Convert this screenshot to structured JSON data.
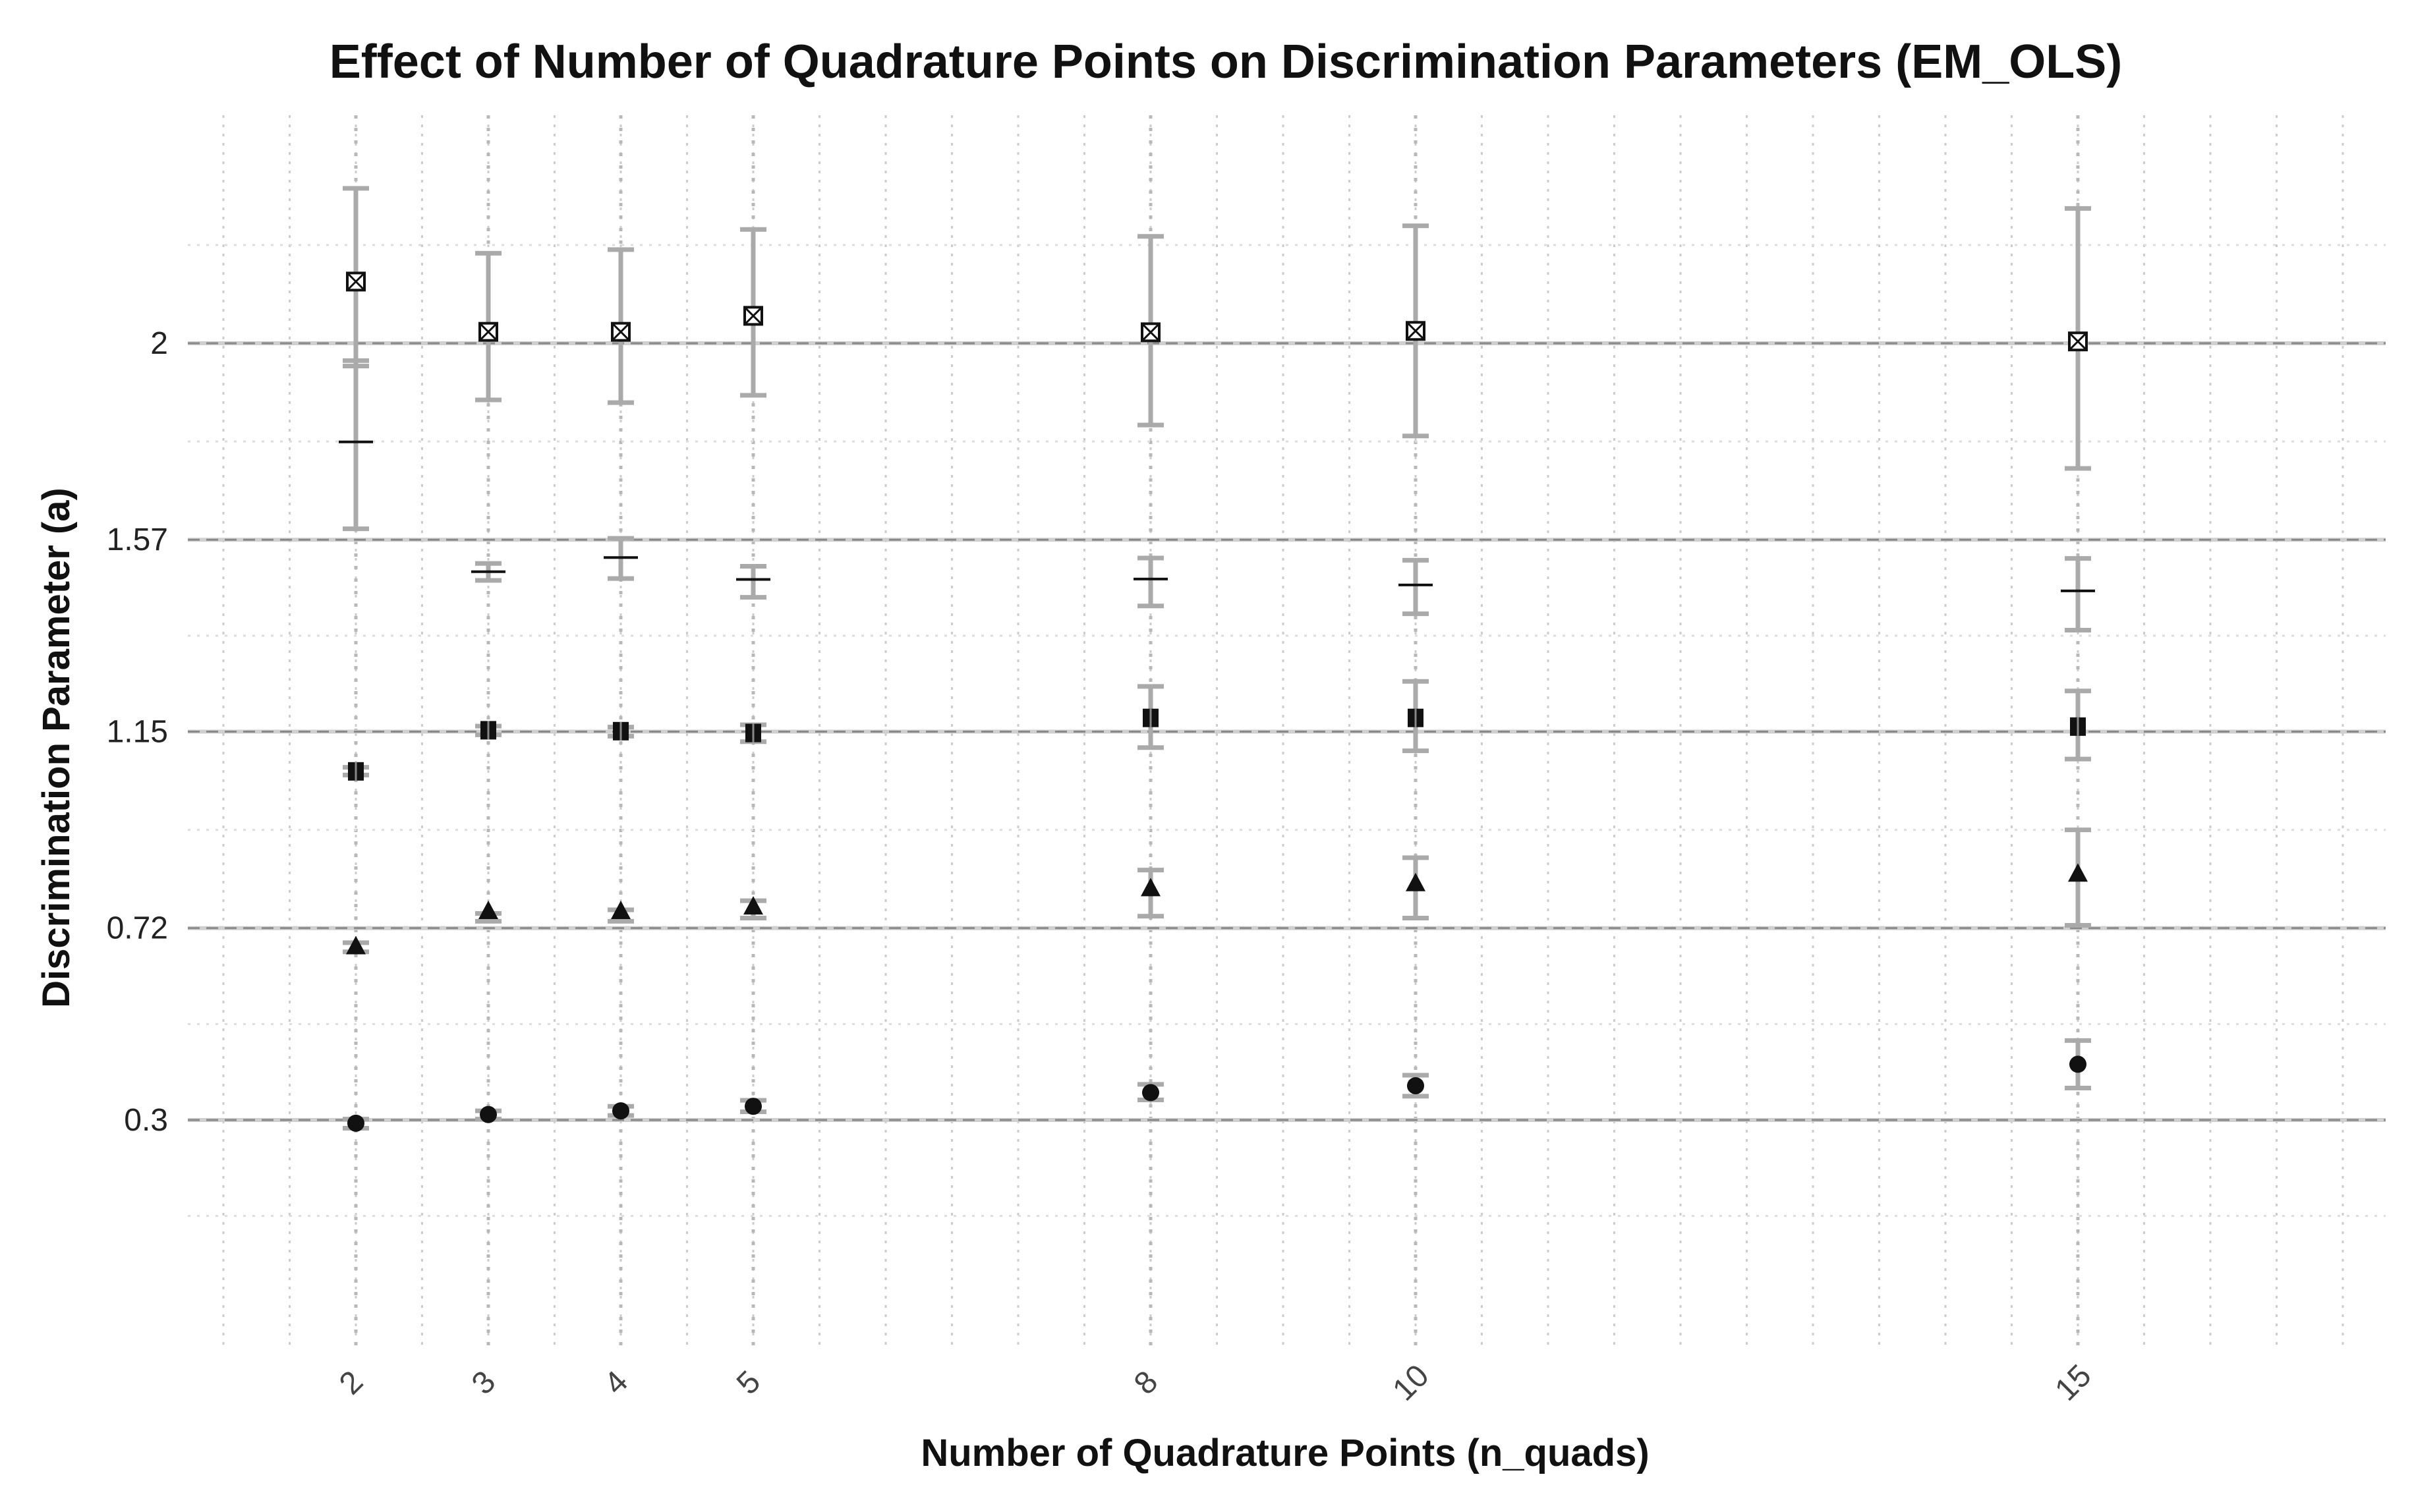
{
  "chart_data": {
    "type": "scatter",
    "title": "Effect of Number of Quadrature Points on Discrimination Parameters (EM_OLS)",
    "xlabel": "Number of Quadrature Points (n_quads)",
    "ylabel": "Discrimination Parameter (a)",
    "x": [
      2,
      3,
      4,
      5,
      8,
      10,
      15
    ],
    "xlim": [
      0,
      17
    ],
    "ylim": [
      0,
      2.5
    ],
    "yticks": [
      "0.3",
      "0.72",
      "1.15",
      "1.57",
      "2"
    ],
    "ytick_values": [
      0.3,
      0.72,
      1.15,
      1.57,
      2.0
    ],
    "reference_lines": [
      0.3,
      0.72,
      1.15,
      1.57,
      2.0
    ],
    "grid": true,
    "legend": "none",
    "colors": {
      "errorbar": "#aaaaaa",
      "marker": "#111111",
      "refline": "#888888",
      "grid": "#cccccc"
    },
    "series": [
      {
        "marker": "circle",
        "values": [
          0.293,
          0.312,
          0.32,
          0.33,
          0.36,
          0.375,
          0.422
        ],
        "lower": [
          0.282,
          0.302,
          0.31,
          0.318,
          0.344,
          0.352,
          0.37
        ],
        "upper": [
          0.302,
          0.32,
          0.33,
          0.343,
          0.378,
          0.398,
          0.474
        ]
      },
      {
        "marker": "triangle",
        "values": [
          0.68,
          0.757,
          0.757,
          0.767,
          0.807,
          0.818,
          0.839
        ],
        "lower": [
          0.668,
          0.735,
          0.735,
          0.742,
          0.746,
          0.742,
          0.726
        ],
        "upper": [
          0.688,
          0.752,
          0.76,
          0.78,
          0.847,
          0.874,
          0.935
        ]
      },
      {
        "marker": "square",
        "values": [
          1.063,
          1.153,
          1.151,
          1.147,
          1.18,
          1.18,
          1.161
        ],
        "lower": [
          1.055,
          1.143,
          1.14,
          1.128,
          1.115,
          1.108,
          1.09
        ],
        "upper": [
          1.072,
          1.162,
          1.16,
          1.165,
          1.249,
          1.26,
          1.239
        ]
      },
      {
        "marker": "dash",
        "values": [
          1.784,
          1.5,
          1.531,
          1.483,
          1.484,
          1.471,
          1.458
        ],
        "lower": [
          1.594,
          1.481,
          1.485,
          1.444,
          1.425,
          1.408,
          1.372
        ],
        "upper": [
          1.962,
          1.518,
          1.573,
          1.512,
          1.53,
          1.525,
          1.529
        ]
      },
      {
        "marker": "boxed-x",
        "values": [
          2.135,
          2.025,
          2.025,
          2.06,
          2.024,
          2.027,
          2.004
        ],
        "lower": [
          1.95,
          1.876,
          1.87,
          1.886,
          1.821,
          1.797,
          1.726
        ],
        "upper": [
          2.339,
          2.197,
          2.205,
          2.249,
          2.234,
          2.257,
          2.295
        ]
      }
    ]
  }
}
